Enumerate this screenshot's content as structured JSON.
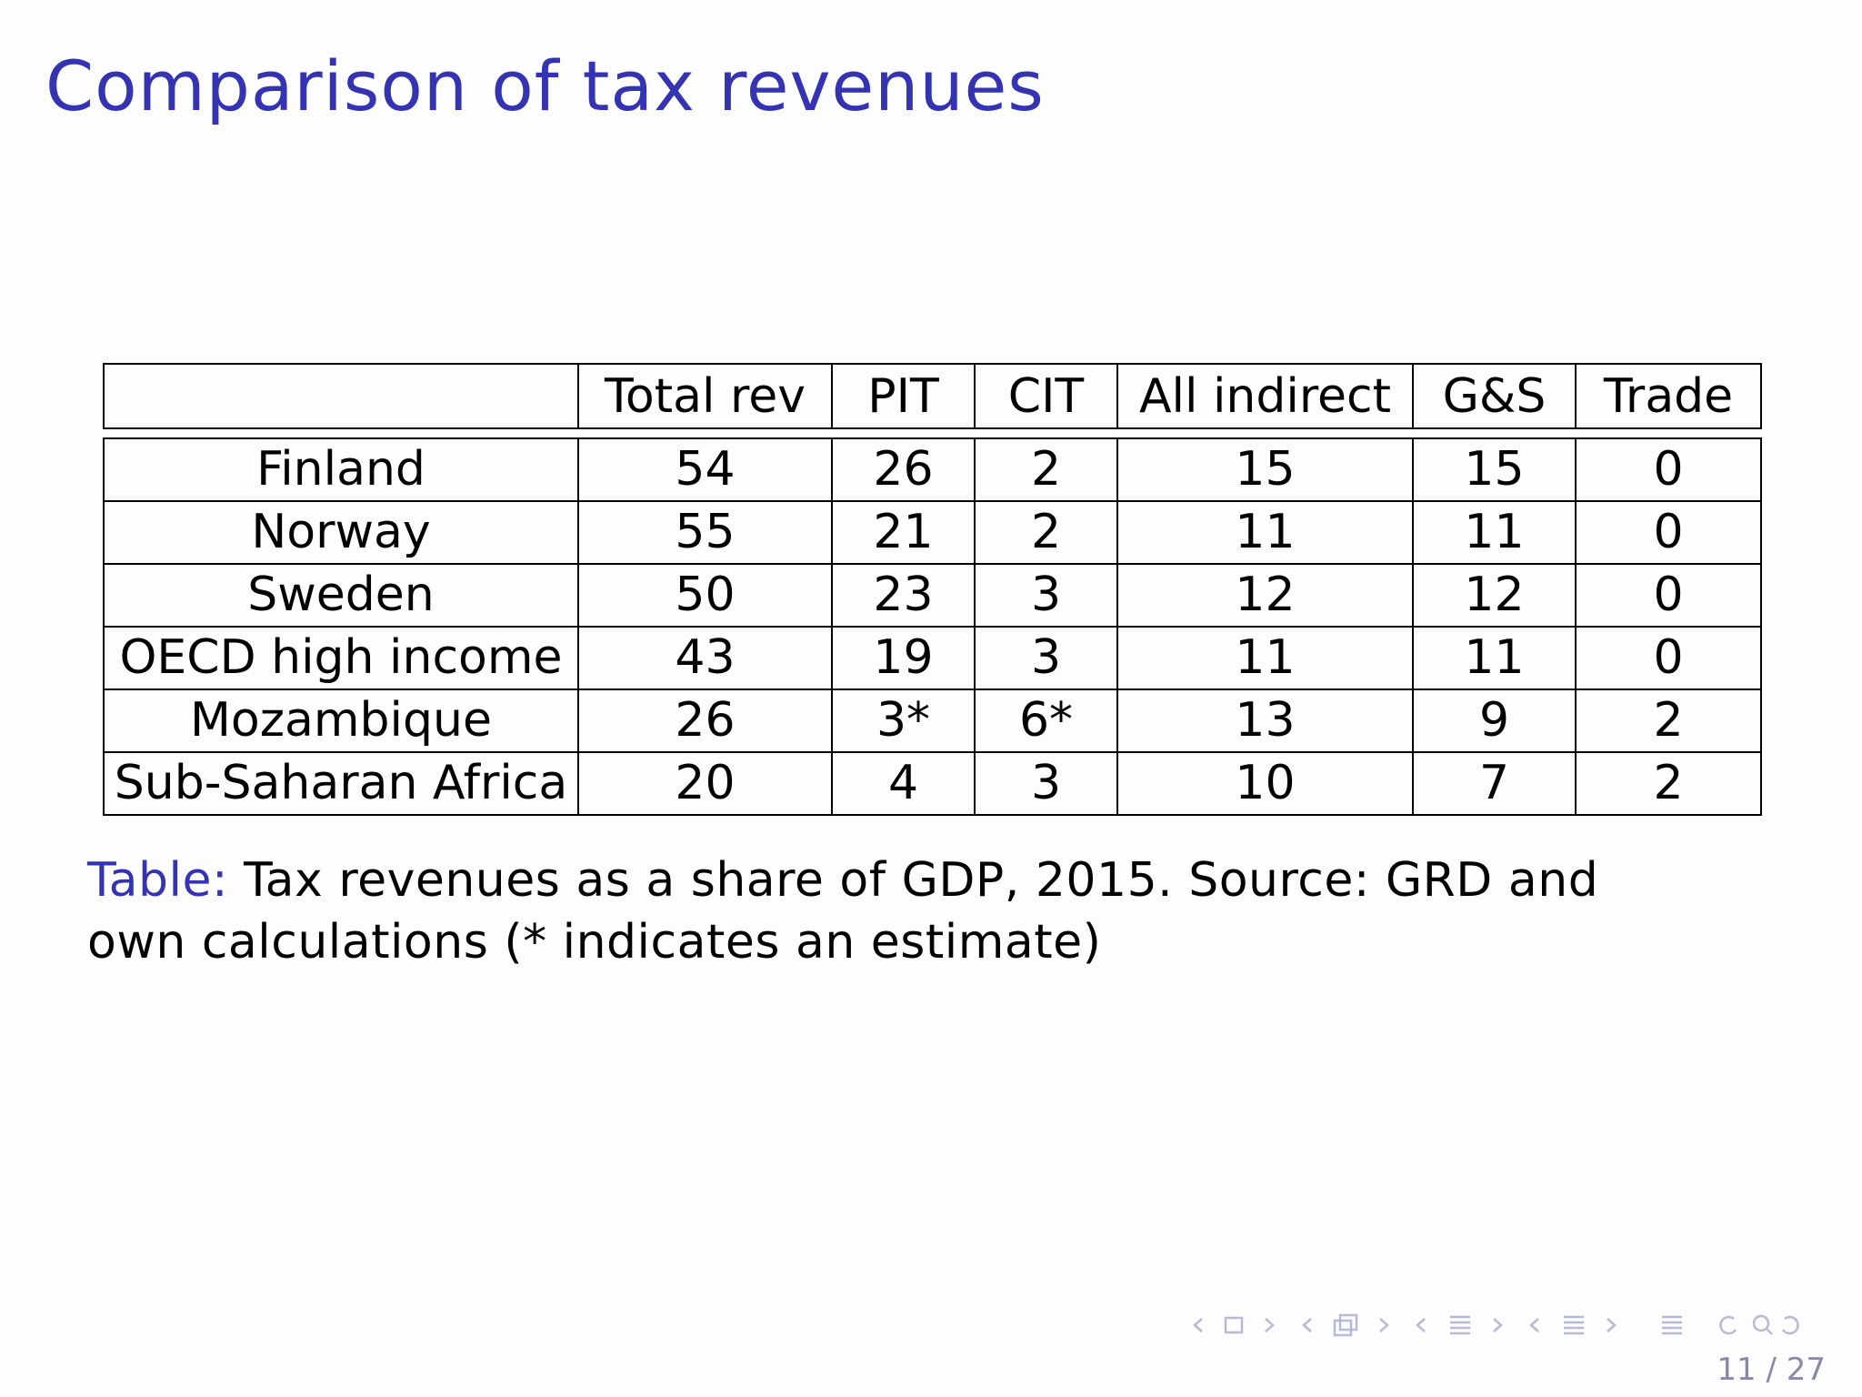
{
  "slide": {
    "title": "Comparison of tax revenues"
  },
  "table": {
    "columns": [
      "",
      "Total rev",
      "PIT",
      "CIT",
      "All indirect",
      "G&S",
      "Trade"
    ],
    "rows": [
      {
        "country": "Finland",
        "total_rev": "54",
        "pit": "26",
        "cit": "2",
        "all_indirect": "15",
        "gs": "15",
        "trade": "0"
      },
      {
        "country": "Norway",
        "total_rev": "55",
        "pit": "21",
        "cit": "2",
        "all_indirect": "11",
        "gs": "11",
        "trade": "0"
      },
      {
        "country": "Sweden",
        "total_rev": "50",
        "pit": "23",
        "cit": "3",
        "all_indirect": "12",
        "gs": "12",
        "trade": "0"
      },
      {
        "country": "OECD high income",
        "total_rev": "43",
        "pit": "19",
        "cit": "3",
        "all_indirect": "11",
        "gs": "11",
        "trade": "0"
      },
      {
        "country": "Mozambique",
        "total_rev": "26",
        "pit": "3*",
        "cit": "6*",
        "all_indirect": "13",
        "gs": "9",
        "trade": "2"
      },
      {
        "country": "Sub-Saharan Africa",
        "total_rev": "20",
        "pit": "4",
        "cit": "3",
        "all_indirect": "10",
        "gs": "7",
        "trade": "2"
      }
    ]
  },
  "caption": {
    "label": "Table:",
    "text": " Tax revenues as a share of GDP, 2015. Source: GRD and own calculations (* indicates an estimate)"
  },
  "nav": {
    "icons": [
      "nav-prev-icon",
      "nav-frame-icon",
      "nav-next-icon",
      "nav-subsection-icon",
      "nav-section-icon",
      "nav-toc-icon",
      "nav-search-icon"
    ],
    "color": "#b8b8d8"
  },
  "page": {
    "number": "11 / 27"
  },
  "colors": {
    "title": "#3333b3",
    "caption_label": "#3333b3"
  }
}
